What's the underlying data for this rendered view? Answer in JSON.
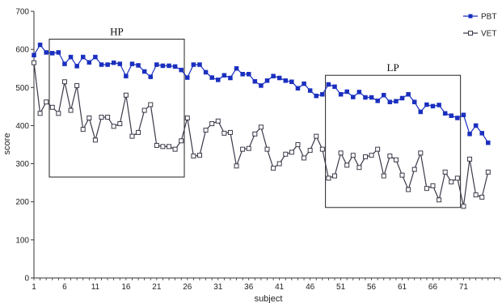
{
  "chart_data": {
    "type": "line",
    "title": "",
    "xlabel": "subject",
    "ylabel": "score",
    "ylim": [
      0,
      700
    ],
    "xlim": [
      1,
      77
    ],
    "yticks": [
      0,
      100,
      200,
      300,
      400,
      500,
      600,
      700
    ],
    "xticks": [
      1,
      6,
      11,
      16,
      21,
      26,
      31,
      36,
      41,
      46,
      51,
      56,
      61,
      66,
      71
    ],
    "legend": "top-right",
    "grid": false,
    "series": [
      {
        "name": "PBT",
        "color": "#1a2fbf",
        "marker": "filled-square",
        "values": [
          585,
          612,
          592,
          590,
          592,
          562,
          580,
          556,
          580,
          566,
          580,
          560,
          560,
          565,
          562,
          530,
          562,
          558,
          542,
          528,
          560,
          557,
          557,
          555,
          546,
          526,
          560,
          560,
          540,
          526,
          520,
          532,
          525,
          550,
          535,
          535,
          516,
          505,
          518,
          530,
          525,
          518,
          515,
          498,
          510,
          492,
          478,
          482,
          508,
          502,
          482,
          489,
          475,
          488,
          474,
          474,
          465,
          480,
          462,
          464,
          472,
          482,
          462,
          436,
          455,
          451,
          454,
          432,
          426,
          420,
          428,
          378,
          400,
          380,
          355
        ],
        "x": [
          1,
          2,
          3,
          4,
          5,
          6,
          7,
          8,
          9,
          10,
          11,
          12,
          13,
          14,
          15,
          16,
          17,
          18,
          19,
          20,
          21,
          22,
          23,
          24,
          25,
          26,
          27,
          28,
          29,
          30,
          31,
          32,
          33,
          34,
          35,
          36,
          37,
          38,
          39,
          40,
          41,
          42,
          43,
          44,
          45,
          46,
          47,
          48,
          49,
          50,
          51,
          52,
          53,
          54,
          55,
          56,
          57,
          58,
          59,
          60,
          61,
          62,
          63,
          64,
          65,
          66,
          67,
          68,
          69,
          70,
          71,
          72,
          73,
          74,
          75
        ]
      },
      {
        "name": "VET",
        "color": "#3a3a4a",
        "marker": "hollow-square",
        "values": [
          565,
          432,
          462,
          448,
          432,
          515,
          440,
          505,
          390,
          420,
          362,
          422,
          422,
          398,
          405,
          480,
          372,
          382,
          440,
          455,
          348,
          345,
          345,
          338,
          360,
          420,
          320,
          322,
          388,
          405,
          412,
          380,
          382,
          294,
          338,
          340,
          378,
          396,
          338,
          288,
          300,
          325,
          330,
          350,
          315,
          335,
          372,
          338,
          262,
          268,
          328,
          296,
          322,
          290,
          318,
          322,
          338,
          268,
          320,
          310,
          270,
          232,
          285,
          328,
          235,
          242,
          205,
          278,
          252,
          262,
          188,
          312,
          218,
          212,
          278
        ],
        "x": [
          1,
          2,
          3,
          4,
          5,
          6,
          7,
          8,
          9,
          10,
          11,
          12,
          13,
          14,
          15,
          16,
          17,
          18,
          19,
          20,
          21,
          22,
          23,
          24,
          25,
          26,
          27,
          28,
          29,
          30,
          31,
          32,
          33,
          34,
          35,
          36,
          37,
          38,
          39,
          40,
          41,
          42,
          43,
          44,
          45,
          46,
          47,
          48,
          49,
          50,
          51,
          52,
          53,
          54,
          55,
          56,
          57,
          58,
          59,
          60,
          61,
          62,
          63,
          64,
          65,
          66,
          67,
          68,
          69,
          70,
          71,
          72,
          73,
          74,
          75
        ]
      }
    ],
    "annotations": [
      {
        "label": "HP",
        "x_range": [
          3.5,
          25.5
        ],
        "y_range": [
          265,
          627
        ]
      },
      {
        "label": "LP",
        "x_range": [
          48.5,
          70.5
        ],
        "y_range": [
          185,
          532
        ]
      }
    ]
  }
}
